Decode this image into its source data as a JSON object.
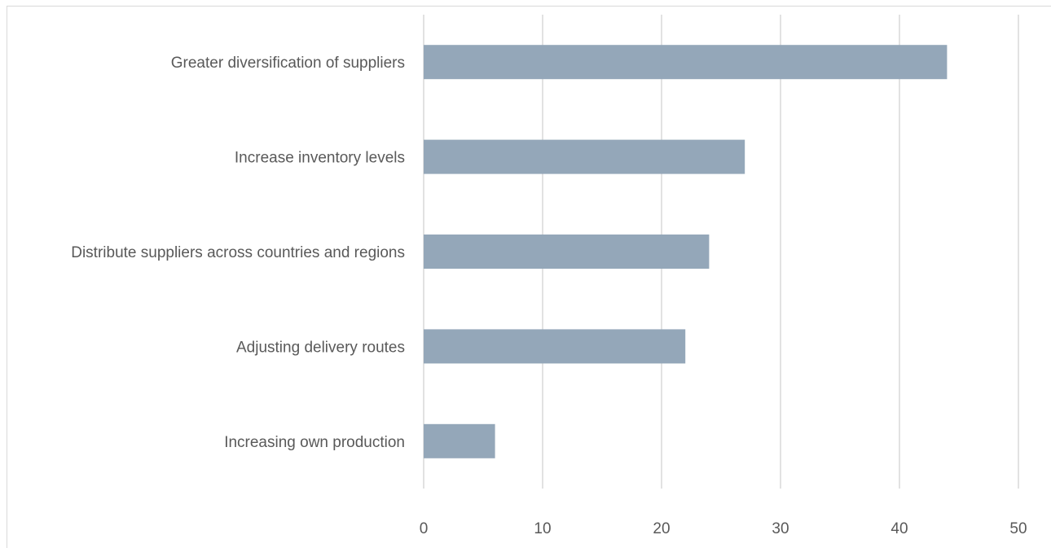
{
  "chart_data": {
    "type": "bar",
    "orientation": "horizontal",
    "categories": [
      "Greater diversification of suppliers",
      "Increase inventory levels",
      "Distribute suppliers across countries and regions",
      "Adjusting delivery routes",
      "Increasing own production"
    ],
    "values": [
      44,
      27,
      24,
      22,
      6
    ],
    "xlim": [
      0,
      50
    ],
    "xticks": [
      "0",
      "10",
      "20",
      "30",
      "40",
      "50"
    ],
    "grid": "vertical",
    "legend": "none",
    "bar_color": "#94a7b9"
  }
}
